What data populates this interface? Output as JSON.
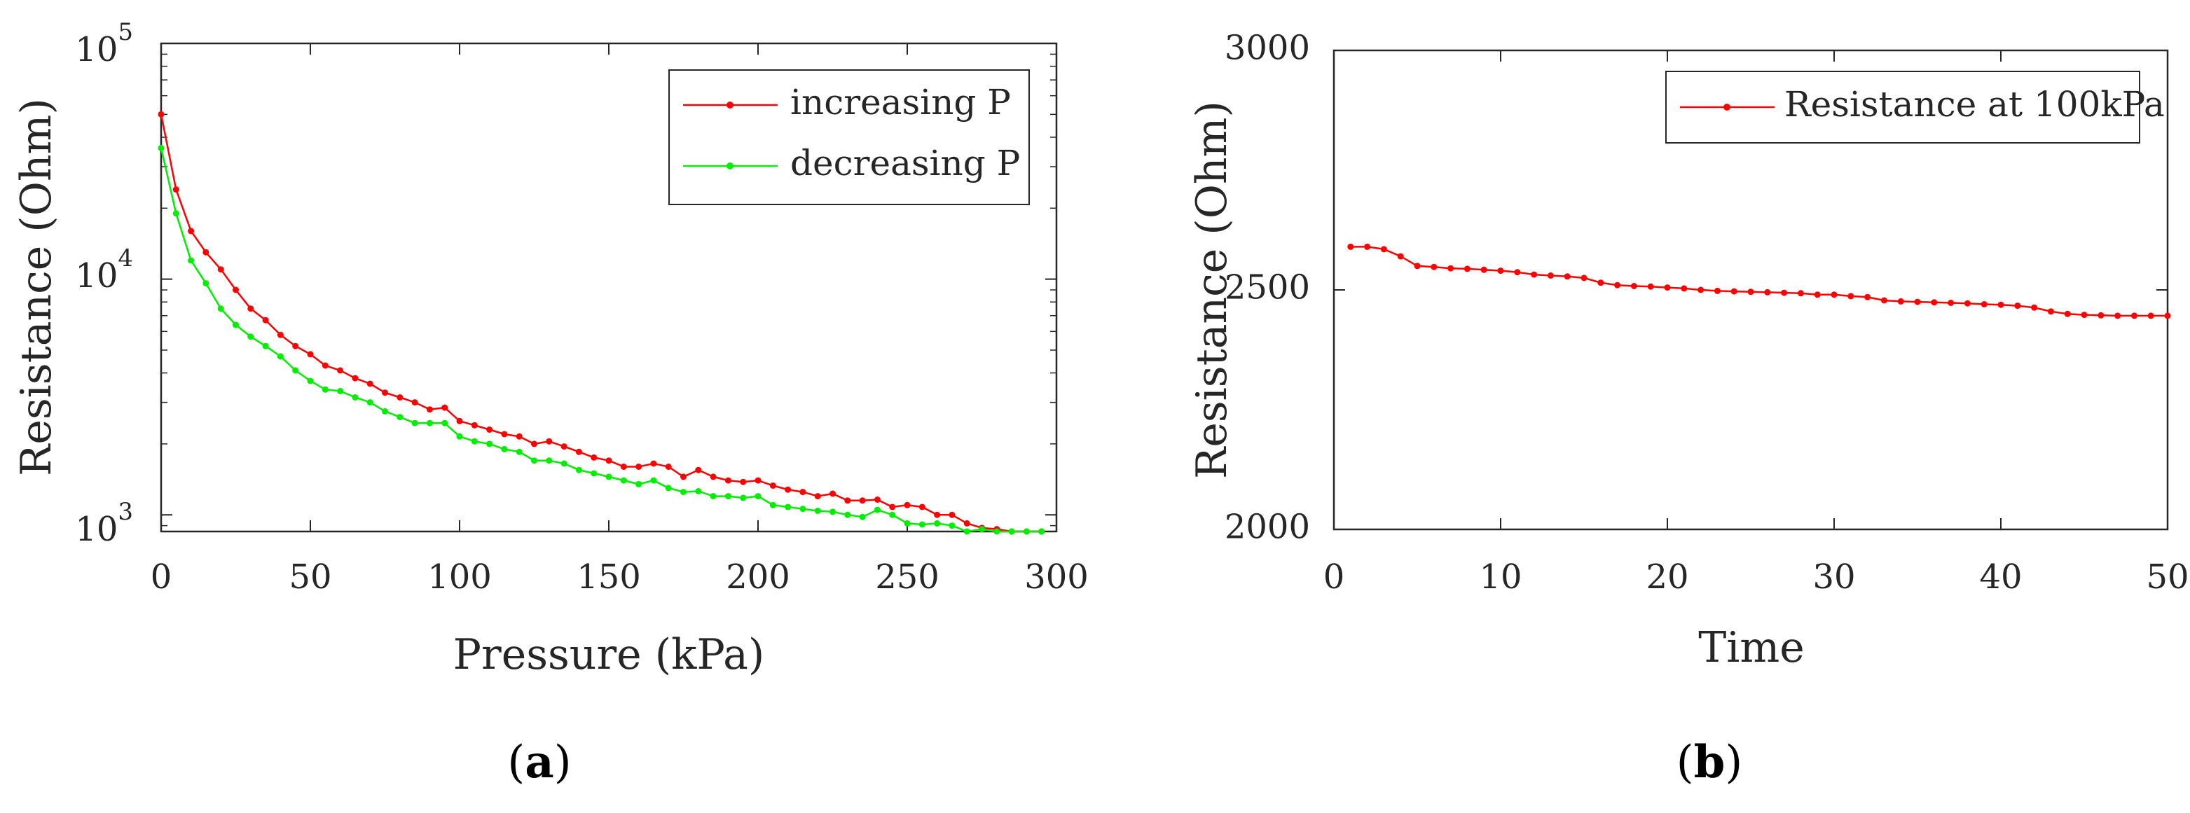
{
  "chart_data": [
    {
      "type": "line",
      "panel_label": {
        "open": "(",
        "letter": "a",
        "close": ")"
      },
      "xlabel": "Pressure (kPa)",
      "ylabel": "Resistance (Ohm)",
      "yscale": "log",
      "xlim": [
        0,
        300
      ],
      "ylim": [
        850,
        100000
      ],
      "xticks": [
        0,
        50,
        100,
        150,
        200,
        250,
        300
      ],
      "xtick_labels": [
        "0",
        "50",
        "100",
        "150",
        "200",
        "250",
        "300"
      ],
      "yticks": [
        1000,
        10000,
        100000
      ],
      "ytick_labels": [
        {
          "base": "10",
          "exp": "3"
        },
        {
          "base": "10",
          "exp": "4"
        },
        {
          "base": "10",
          "exp": "5"
        }
      ],
      "legend_position": "top-right",
      "series": [
        {
          "name": "increasing P",
          "color": "#ff0000",
          "x": [
            0,
            5,
            10,
            15,
            20,
            25,
            30,
            35,
            40,
            45,
            50,
            55,
            60,
            65,
            70,
            75,
            80,
            85,
            90,
            95,
            100,
            105,
            110,
            115,
            120,
            125,
            130,
            135,
            140,
            145,
            150,
            155,
            160,
            165,
            170,
            175,
            180,
            185,
            190,
            195,
            200,
            205,
            210,
            215,
            220,
            225,
            230,
            235,
            240,
            245,
            250,
            255,
            260,
            265,
            270,
            275,
            280,
            285,
            290,
            295
          ],
          "values": [
            50000,
            24000,
            16000,
            13000,
            11000,
            9000,
            7500,
            6700,
            5800,
            5200,
            4800,
            4300,
            4100,
            3800,
            3600,
            3300,
            3150,
            3000,
            2800,
            2850,
            2500,
            2400,
            2300,
            2200,
            2150,
            2000,
            2050,
            1950,
            1850,
            1750,
            1700,
            1600,
            1600,
            1650,
            1600,
            1450,
            1550,
            1450,
            1400,
            1380,
            1400,
            1330,
            1280,
            1250,
            1200,
            1230,
            1150,
            1150,
            1160,
            1080,
            1100,
            1080,
            1000,
            1000,
            920,
            880,
            870,
            850,
            850,
            850
          ]
        },
        {
          "name": "decreasing P",
          "color": "#00ee00",
          "x": [
            0,
            5,
            10,
            15,
            20,
            25,
            30,
            35,
            40,
            45,
            50,
            55,
            60,
            65,
            70,
            75,
            80,
            85,
            90,
            95,
            100,
            105,
            110,
            115,
            120,
            125,
            130,
            135,
            140,
            145,
            150,
            155,
            160,
            165,
            170,
            175,
            180,
            185,
            190,
            195,
            200,
            205,
            210,
            215,
            220,
            225,
            230,
            235,
            240,
            245,
            250,
            255,
            260,
            265,
            270,
            275,
            280,
            285,
            290,
            295
          ],
          "values": [
            36000,
            19000,
            12000,
            9600,
            7500,
            6400,
            5700,
            5200,
            4700,
            4100,
            3700,
            3400,
            3350,
            3150,
            3000,
            2750,
            2600,
            2450,
            2450,
            2450,
            2150,
            2050,
            2000,
            1900,
            1850,
            1700,
            1700,
            1650,
            1550,
            1500,
            1450,
            1400,
            1350,
            1400,
            1300,
            1250,
            1260,
            1200,
            1200,
            1180,
            1200,
            1100,
            1080,
            1060,
            1040,
            1030,
            1000,
            980,
            1050,
            1000,
            920,
            910,
            920,
            900,
            850,
            870,
            850,
            850,
            850,
            850
          ]
        }
      ]
    },
    {
      "type": "line",
      "panel_label": {
        "open": "(",
        "letter": "b",
        "close": ")"
      },
      "xlabel": "Time",
      "ylabel": "Resistance (Ohm)",
      "xlim": [
        0,
        50
      ],
      "ylim": [
        2000,
        3000
      ],
      "xticks": [
        0,
        10,
        20,
        30,
        40,
        50
      ],
      "xtick_labels": [
        "0",
        "10",
        "20",
        "30",
        "40",
        "50"
      ],
      "yticks": [
        2000,
        2500,
        3000
      ],
      "ytick_labels": [
        "2000",
        "2500",
        "3000"
      ],
      "legend_position": "top-right",
      "series": [
        {
          "name": "Resistance at 100kPa",
          "color": "#ff0000",
          "x": [
            1,
            2,
            3,
            4,
            5,
            6,
            7,
            8,
            9,
            10,
            11,
            12,
            13,
            14,
            15,
            16,
            17,
            18,
            19,
            20,
            21,
            22,
            23,
            24,
            25,
            26,
            27,
            28,
            29,
            30,
            31,
            32,
            33,
            34,
            35,
            36,
            37,
            38,
            39,
            40,
            41,
            42,
            43,
            44,
            45,
            46,
            47,
            48,
            49,
            50
          ],
          "values": [
            2590,
            2590,
            2585,
            2570,
            2550,
            2548,
            2545,
            2544,
            2542,
            2540,
            2537,
            2532,
            2530,
            2528,
            2525,
            2515,
            2510,
            2508,
            2507,
            2505,
            2503,
            2500,
            2498,
            2497,
            2496,
            2495,
            2494,
            2493,
            2490,
            2490,
            2487,
            2485,
            2478,
            2476,
            2475,
            2474,
            2473,
            2472,
            2470,
            2469,
            2467,
            2463,
            2455,
            2450,
            2448,
            2447,
            2446,
            2446,
            2446,
            2446
          ]
        }
      ]
    }
  ]
}
